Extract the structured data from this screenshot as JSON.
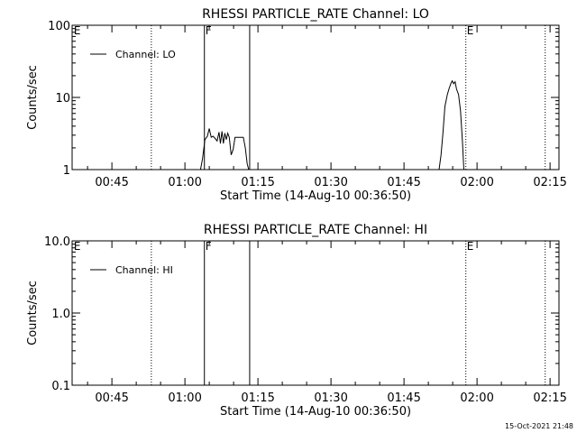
{
  "footer_timestamp": "15-Oct-2021 21:48",
  "chart_data": [
    {
      "type": "line",
      "title": "RHESSI PARTICLE_RATE Channel: LO",
      "xlabel": "Start Time (14-Aug-10 00:36:50)",
      "ylabel": "Counts/sec",
      "yscale": "log",
      "ylim": [
        1,
        100
      ],
      "xlim_minutes": [
        36.83,
        136.83
      ],
      "x_ticks": [
        {
          "m": 45,
          "label": "00:45"
        },
        {
          "m": 60,
          "label": "01:00"
        },
        {
          "m": 75,
          "label": "01:15"
        },
        {
          "m": 90,
          "label": "01:30"
        },
        {
          "m": 105,
          "label": "01:45"
        },
        {
          "m": 120,
          "label": "02:00"
        },
        {
          "m": 135,
          "label": "02:15"
        }
      ],
      "y_ticks": [
        {
          "v": 1,
          "label": "1"
        },
        {
          "v": 10,
          "label": "10"
        },
        {
          "v": 100,
          "label": "100"
        }
      ],
      "legend": {
        "label": "Channel: LO",
        "position": "top-left"
      },
      "markers": [
        {
          "m": 37.0,
          "style": "none",
          "label": "E"
        },
        {
          "m": 53.1,
          "style": "dotted",
          "label": ""
        },
        {
          "m": 64.0,
          "style": "solid",
          "label": "F"
        },
        {
          "m": 73.3,
          "style": "solid",
          "label": ""
        },
        {
          "m": 117.7,
          "style": "dotted",
          "label": "E"
        },
        {
          "m": 134.0,
          "style": "dotted",
          "label": ""
        }
      ],
      "series": [
        {
          "name": "Channel: LO",
          "x": [
            63.2,
            63.6,
            64.1,
            64.6,
            65.0,
            65.4,
            65.8,
            66.2,
            66.6,
            67.0,
            67.3,
            67.6,
            67.9,
            68.2,
            68.5,
            68.8,
            69.1,
            69.5,
            69.9,
            70.3,
            70.8,
            71.2,
            71.6,
            72.0,
            72.4,
            72.8,
            73.1
          ],
          "y": [
            1.0,
            1.4,
            2.6,
            2.9,
            3.7,
            2.8,
            2.9,
            2.7,
            2.5,
            3.3,
            2.3,
            3.4,
            2.3,
            3.2,
            2.6,
            3.2,
            2.8,
            1.6,
            1.9,
            2.8,
            2.8,
            2.8,
            2.8,
            2.8,
            2.0,
            1.2,
            1.0
          ]
        },
        {
          "name": "Channel: LO",
          "x": [
            112.2,
            112.6,
            113.0,
            113.4,
            113.9,
            114.3,
            114.6,
            114.9,
            115.2,
            115.5,
            115.8,
            116.2,
            116.6,
            117.0,
            117.3
          ],
          "y": [
            1.0,
            1.6,
            3.2,
            7.5,
            11.0,
            13.5,
            15.5,
            17.0,
            15.5,
            16.5,
            13.0,
            11.0,
            6.5,
            2.5,
            1.0
          ]
        }
      ]
    },
    {
      "type": "line",
      "title": "RHESSI PARTICLE_RATE Channel: HI",
      "xlabel": "Start Time (14-Aug-10 00:36:50)",
      "ylabel": "Counts/sec",
      "yscale": "log",
      "ylim": [
        0.1,
        10
      ],
      "xlim_minutes": [
        36.83,
        136.83
      ],
      "x_ticks": [
        {
          "m": 45,
          "label": "00:45"
        },
        {
          "m": 60,
          "label": "01:00"
        },
        {
          "m": 75,
          "label": "01:15"
        },
        {
          "m": 90,
          "label": "01:30"
        },
        {
          "m": 105,
          "label": "01:45"
        },
        {
          "m": 120,
          "label": "02:00"
        },
        {
          "m": 135,
          "label": "02:15"
        }
      ],
      "y_ticks": [
        {
          "v": 0.1,
          "label": "0.1"
        },
        {
          "v": 1,
          "label": "1.0"
        },
        {
          "v": 10,
          "label": "10.0"
        }
      ],
      "legend": {
        "label": "Channel: HI",
        "position": "top-left"
      },
      "markers": [
        {
          "m": 37.0,
          "style": "none",
          "label": "E"
        },
        {
          "m": 53.1,
          "style": "dotted",
          "label": ""
        },
        {
          "m": 64.0,
          "style": "solid",
          "label": "F"
        },
        {
          "m": 73.3,
          "style": "solid",
          "label": ""
        },
        {
          "m": 117.7,
          "style": "dotted",
          "label": "E"
        },
        {
          "m": 134.0,
          "style": "dotted",
          "label": ""
        }
      ],
      "series": []
    }
  ]
}
